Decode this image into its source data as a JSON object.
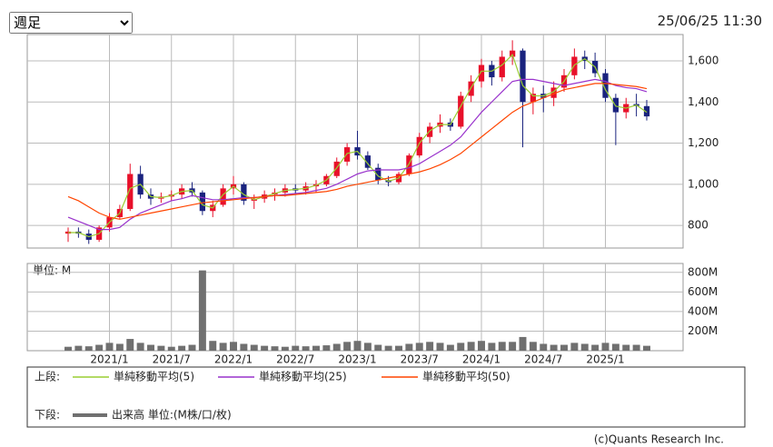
{
  "controls": {
    "period": "週足",
    "timestamp": "25/06/25 11:30"
  },
  "chart_data": [
    {
      "type": "candlestick",
      "x": [
        "2020/9",
        "2020/10",
        "2020/11",
        "2020/12",
        "2021/1",
        "2021/2",
        "2021/3",
        "2021/4",
        "2021/5",
        "2021/6",
        "2021/7",
        "2021/8",
        "2021/9",
        "2021/10",
        "2021/11",
        "2021/12",
        "2022/1",
        "2022/2",
        "2022/3",
        "2022/4",
        "2022/5",
        "2022/6",
        "2022/7",
        "2022/8",
        "2022/9",
        "2022/10",
        "2022/11",
        "2022/12",
        "2023/1",
        "2023/2",
        "2023/3",
        "2023/4",
        "2023/5",
        "2023/6",
        "2023/7",
        "2023/8",
        "2023/9",
        "2023/10",
        "2023/11",
        "2023/12",
        "2024/1",
        "2024/2",
        "2024/3",
        "2024/4",
        "2024/5",
        "2024/6",
        "2024/7",
        "2024/8",
        "2024/9",
        "2024/10",
        "2024/11",
        "2024/12",
        "2025/1",
        "2025/2",
        "2025/3",
        "2025/4",
        "2025/5"
      ],
      "open": [
        760,
        770,
        760,
        730,
        790,
        840,
        880,
        1050,
        950,
        930,
        940,
        950,
        980,
        960,
        870,
        900,
        980,
        1000,
        920,
        930,
        950,
        960,
        980,
        970,
        990,
        1000,
        1040,
        1110,
        1180,
        1140,
        1080,
        1020,
        1010,
        1050,
        1140,
        1230,
        1280,
        1300,
        1280,
        1430,
        1500,
        1580,
        1520,
        1620,
        1650,
        1400,
        1440,
        1420,
        1470,
        1530,
        1620,
        1600,
        1540,
        1420,
        1350,
        1390,
        1380
      ],
      "high": [
        790,
        790,
        780,
        800,
        860,
        900,
        1100,
        1090,
        980,
        960,
        970,
        1000,
        1010,
        970,
        920,
        1000,
        1040,
        1010,
        950,
        970,
        980,
        1000,
        1000,
        1010,
        1020,
        1050,
        1130,
        1200,
        1260,
        1160,
        1100,
        1040,
        1060,
        1150,
        1250,
        1300,
        1340,
        1320,
        1450,
        1530,
        1610,
        1600,
        1650,
        1700,
        1660,
        1470,
        1480,
        1500,
        1560,
        1660,
        1650,
        1640,
        1560,
        1440,
        1420,
        1440,
        1410
      ],
      "low": [
        720,
        740,
        710,
        720,
        770,
        830,
        870,
        930,
        900,
        910,
        920,
        930,
        940,
        850,
        840,
        890,
        950,
        900,
        880,
        910,
        920,
        940,
        950,
        950,
        960,
        990,
        1030,
        1090,
        1120,
        1070,
        1000,
        990,
        1000,
        1040,
        1130,
        1200,
        1250,
        1260,
        1270,
        1400,
        1470,
        1480,
        1500,
        1580,
        1180,
        1340,
        1350,
        1380,
        1450,
        1510,
        1560,
        1520,
        1400,
        1190,
        1320,
        1330,
        1310
      ],
      "close": [
        770,
        760,
        730,
        790,
        840,
        880,
        1050,
        950,
        930,
        940,
        950,
        980,
        960,
        870,
        900,
        980,
        1000,
        920,
        930,
        950,
        960,
        980,
        970,
        990,
        1000,
        1040,
        1110,
        1180,
        1140,
        1080,
        1020,
        1010,
        1050,
        1140,
        1230,
        1280,
        1300,
        1280,
        1430,
        1500,
        1580,
        1520,
        1620,
        1650,
        1400,
        1440,
        1420,
        1470,
        1530,
        1620,
        1600,
        1540,
        1420,
        1350,
        1390,
        1380,
        1330
      ],
      "up_color": "#e8102a",
      "down_color": "#1a237e",
      "series": [
        {
          "name": "単純移動平均(5)",
          "color": "#9acd32",
          "values": [
            765,
            765,
            745,
            760,
            815,
            860,
            980,
            1000,
            940,
            935,
            945,
            965,
            970,
            900,
            885,
            950,
            990,
            950,
            925,
            940,
            955,
            970,
            975,
            980,
            995,
            1020,
            1080,
            1150,
            1160,
            1100,
            1040,
            1015,
            1030,
            1100,
            1200,
            1260,
            1290,
            1290,
            1380,
            1470,
            1550,
            1550,
            1580,
            1630,
            1480,
            1430,
            1430,
            1450,
            1500,
            1580,
            1610,
            1570,
            1460,
            1380,
            1370,
            1385,
            1350
          ]
        },
        {
          "name": "単純移動平均(25)",
          "color": "#9932cc",
          "values": [
            840,
            820,
            800,
            780,
            780,
            790,
            830,
            860,
            880,
            900,
            920,
            930,
            945,
            935,
            925,
            925,
            930,
            935,
            935,
            940,
            945,
            950,
            955,
            960,
            970,
            980,
            1000,
            1025,
            1050,
            1065,
            1070,
            1070,
            1070,
            1080,
            1100,
            1130,
            1160,
            1190,
            1230,
            1290,
            1350,
            1400,
            1450,
            1500,
            1510,
            1510,
            1500,
            1490,
            1480,
            1490,
            1500,
            1510,
            1500,
            1480,
            1470,
            1465,
            1450
          ]
        },
        {
          "name": "単純移動平均(50)",
          "color": "#ff4500",
          "values": [
            940,
            920,
            890,
            860,
            840,
            830,
            840,
            850,
            860,
            870,
            880,
            890,
            900,
            910,
            915,
            920,
            925,
            930,
            935,
            940,
            945,
            945,
            950,
            955,
            960,
            965,
            975,
            990,
            1000,
            1010,
            1020,
            1030,
            1040,
            1050,
            1060,
            1075,
            1095,
            1120,
            1150,
            1190,
            1230,
            1270,
            1310,
            1350,
            1380,
            1400,
            1420,
            1440,
            1460,
            1470,
            1480,
            1490,
            1490,
            1485,
            1480,
            1475,
            1465
          ]
        }
      ],
      "ylim": [
        690,
        1728
      ],
      "yticks": [
        800,
        {
          "value": 1000,
          "label": "1,000"
        },
        {
          "value": 1200,
          "label": "1,200"
        },
        {
          "value": 1400,
          "label": "1,400"
        },
        {
          "value": 1600,
          "label": "1,600"
        }
      ],
      "grid": true
    },
    {
      "type": "bar",
      "unit_label": "単位: M",
      "series": [
        {
          "name": "出来高 単位:(M株/口/枚)",
          "color": "#707070",
          "values": [
            40,
            50,
            45,
            60,
            80,
            70,
            120,
            80,
            60,
            50,
            40,
            50,
            60,
            820,
            100,
            80,
            90,
            70,
            60,
            50,
            45,
            40,
            50,
            45,
            50,
            55,
            70,
            90,
            100,
            80,
            60,
            50,
            50,
            70,
            80,
            90,
            80,
            60,
            80,
            90,
            100,
            80,
            90,
            90,
            140,
            90,
            70,
            60,
            60,
            80,
            70,
            60,
            80,
            70,
            60,
            60,
            50
          ]
        }
      ],
      "ylim": [
        0,
        891
      ],
      "yticks": [
        {
          "value": 200,
          "label": "200M"
        },
        {
          "value": 400,
          "label": "400M"
        },
        {
          "value": 600,
          "label": "600M"
        },
        {
          "value": 800,
          "label": "800M"
        }
      ],
      "xticks": [
        "2021/1",
        "2021/7",
        "2022/1",
        "2022/7",
        "2023/1",
        "2023/7",
        "2024/1",
        "2024/7",
        "2025/1"
      ],
      "grid": true
    }
  ],
  "legend": {
    "upper_label": "上段:",
    "lower_label": "下段:"
  },
  "footer": "(c)Quants Research Inc."
}
